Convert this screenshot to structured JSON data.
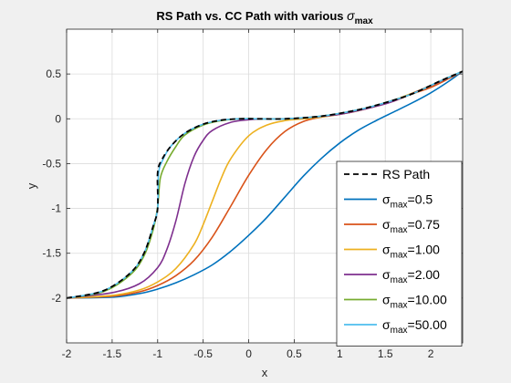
{
  "chart_data": {
    "type": "line",
    "title": "RS Path vs. CC Path with various σmax",
    "title_parts": {
      "main": "RS Path vs. CC Path with various ",
      "sym": "σ",
      "sub": "max"
    },
    "xlabel": "x",
    "ylabel": "y",
    "xlim": [
      -2,
      2.35
    ],
    "ylim": [
      -2.5,
      1.0
    ],
    "xticks": [
      -2,
      -1.5,
      -1,
      -0.5,
      0,
      0.5,
      1,
      1.5,
      2
    ],
    "xtick_labels": [
      "-2",
      "-1.5",
      "-1",
      "-0.5",
      "0",
      "0.5",
      "1",
      "1.5",
      "2"
    ],
    "yticks": [
      -2,
      -1.5,
      -1,
      -0.5,
      0,
      0.5
    ],
    "ytick_labels": [
      "-2",
      "-1.5",
      "-1",
      "-0.5",
      "0",
      "0.5"
    ],
    "grid": true,
    "legend_position": "bottom-right",
    "series": [
      {
        "name": "RS Path",
        "label_main": "RS Path",
        "label_sub": "",
        "label_val": "",
        "color": "#000000",
        "dash": true,
        "x": [
          -2,
          -1.6,
          -1.3,
          -1.15,
          -1.05,
          -1.0,
          -1.0,
          -0.95,
          -0.85,
          -0.7,
          -0.5,
          -0.3,
          -0.1,
          0.1,
          0.4,
          0.8,
          1.2,
          1.5,
          1.8,
          2.1,
          2.35
        ],
        "y": [
          -2,
          -1.92,
          -1.72,
          -1.5,
          -1.2,
          -1.0,
          -0.6,
          -0.45,
          -0.3,
          -0.16,
          -0.06,
          -0.015,
          0.0,
          0.0,
          0.0,
          0.03,
          0.1,
          0.18,
          0.28,
          0.42,
          0.53
        ]
      },
      {
        "name": "σmax=0.5",
        "label_main": "σ",
        "label_sub": "max",
        "label_val": "=0.5",
        "color": "#0072BD",
        "dash": false,
        "x": [
          -2,
          -1.5,
          -1.2,
          -1.0,
          -0.8,
          -0.6,
          -0.4,
          -0.2,
          0.0,
          0.2,
          0.4,
          0.6,
          0.8,
          1.0,
          1.2,
          1.4,
          1.6,
          1.8,
          2.0,
          2.2,
          2.35
        ],
        "y": [
          -2,
          -1.99,
          -1.95,
          -1.9,
          -1.83,
          -1.74,
          -1.63,
          -1.48,
          -1.3,
          -1.1,
          -0.87,
          -0.64,
          -0.44,
          -0.27,
          -0.13,
          -0.02,
          0.08,
          0.18,
          0.29,
          0.42,
          0.53
        ]
      },
      {
        "name": "σmax=0.75",
        "label_main": "σ",
        "label_sub": "max",
        "label_val": "=0.75",
        "color": "#D95319",
        "dash": false,
        "x": [
          -2,
          -1.5,
          -1.2,
          -1.0,
          -0.8,
          -0.6,
          -0.4,
          -0.2,
          0.0,
          0.2,
          0.4,
          0.6,
          0.8,
          1.0,
          1.2,
          1.4,
          1.6,
          1.8,
          2.0,
          2.2,
          2.35
        ],
        "y": [
          -2,
          -1.98,
          -1.93,
          -1.86,
          -1.75,
          -1.58,
          -1.32,
          -0.98,
          -0.63,
          -0.34,
          -0.14,
          -0.03,
          0.02,
          0.05,
          0.09,
          0.14,
          0.2,
          0.28,
          0.35,
          0.45,
          0.53
        ]
      },
      {
        "name": "σmax=1.00",
        "label_main": "σ",
        "label_sub": "max",
        "label_val": "=1.00",
        "color": "#EDB120",
        "dash": false,
        "x": [
          -2,
          -1.5,
          -1.2,
          -1.0,
          -0.8,
          -0.6,
          -0.5,
          -0.4,
          -0.3,
          -0.2,
          0.0,
          0.2,
          0.4,
          0.6,
          0.8,
          1.0,
          1.2,
          1.4,
          1.6,
          2.0,
          2.35
        ],
        "y": [
          -2,
          -1.97,
          -1.91,
          -1.82,
          -1.67,
          -1.4,
          -1.18,
          -0.92,
          -0.66,
          -0.45,
          -0.19,
          -0.07,
          -0.02,
          0.0,
          0.02,
          0.05,
          0.09,
          0.15,
          0.21,
          0.37,
          0.53
        ]
      },
      {
        "name": "σmax=2.00",
        "label_main": "σ",
        "label_sub": "max",
        "label_val": "=2.00",
        "color": "#7E2F8E",
        "dash": false,
        "x": [
          -2,
          -1.5,
          -1.2,
          -1.0,
          -0.9,
          -0.8,
          -0.7,
          -0.6,
          -0.5,
          -0.4,
          -0.2,
          0.0,
          0.2,
          0.4,
          0.6,
          1.0,
          1.4,
          1.6,
          2.0,
          2.35
        ],
        "y": [
          -2,
          -1.94,
          -1.84,
          -1.66,
          -1.46,
          -1.14,
          -0.72,
          -0.42,
          -0.24,
          -0.13,
          -0.04,
          -0.01,
          0.0,
          0.0,
          0.01,
          0.05,
          0.14,
          0.2,
          0.37,
          0.53
        ]
      },
      {
        "name": "σmax=10.00",
        "label_main": "σ",
        "label_sub": "max",
        "label_val": "=10.00",
        "color": "#77AC30",
        "dash": false,
        "x": [
          -2,
          -1.6,
          -1.3,
          -1.15,
          -1.05,
          -1.0,
          -0.97,
          -0.9,
          -0.8,
          -0.7,
          -0.5,
          -0.3,
          -0.1,
          0.1,
          0.4,
          0.8,
          1.2,
          1.5,
          1.8,
          2.1,
          2.35
        ],
        "y": [
          -2,
          -1.93,
          -1.74,
          -1.53,
          -1.24,
          -0.98,
          -0.66,
          -0.48,
          -0.31,
          -0.18,
          -0.07,
          -0.02,
          0.0,
          0.0,
          0.0,
          0.03,
          0.1,
          0.18,
          0.28,
          0.42,
          0.53
        ]
      },
      {
        "name": "σmax=50.00",
        "label_main": "σ",
        "label_sub": "max",
        "label_val": "=50.00",
        "color": "#4DBEEE",
        "dash": false,
        "x": [
          -2,
          -1.6,
          -1.3,
          -1.15,
          -1.05,
          -1.0,
          -0.99,
          -0.94,
          -0.85,
          -0.7,
          -0.5,
          -0.3,
          -0.1,
          0.1,
          0.4,
          0.8,
          1.2,
          1.5,
          1.8,
          2.1,
          2.35
        ],
        "y": [
          -2,
          -1.92,
          -1.72,
          -1.5,
          -1.2,
          -1.0,
          -0.61,
          -0.45,
          -0.3,
          -0.16,
          -0.06,
          -0.015,
          0.0,
          0.0,
          0.0,
          0.03,
          0.1,
          0.18,
          0.28,
          0.42,
          0.53
        ]
      }
    ]
  }
}
